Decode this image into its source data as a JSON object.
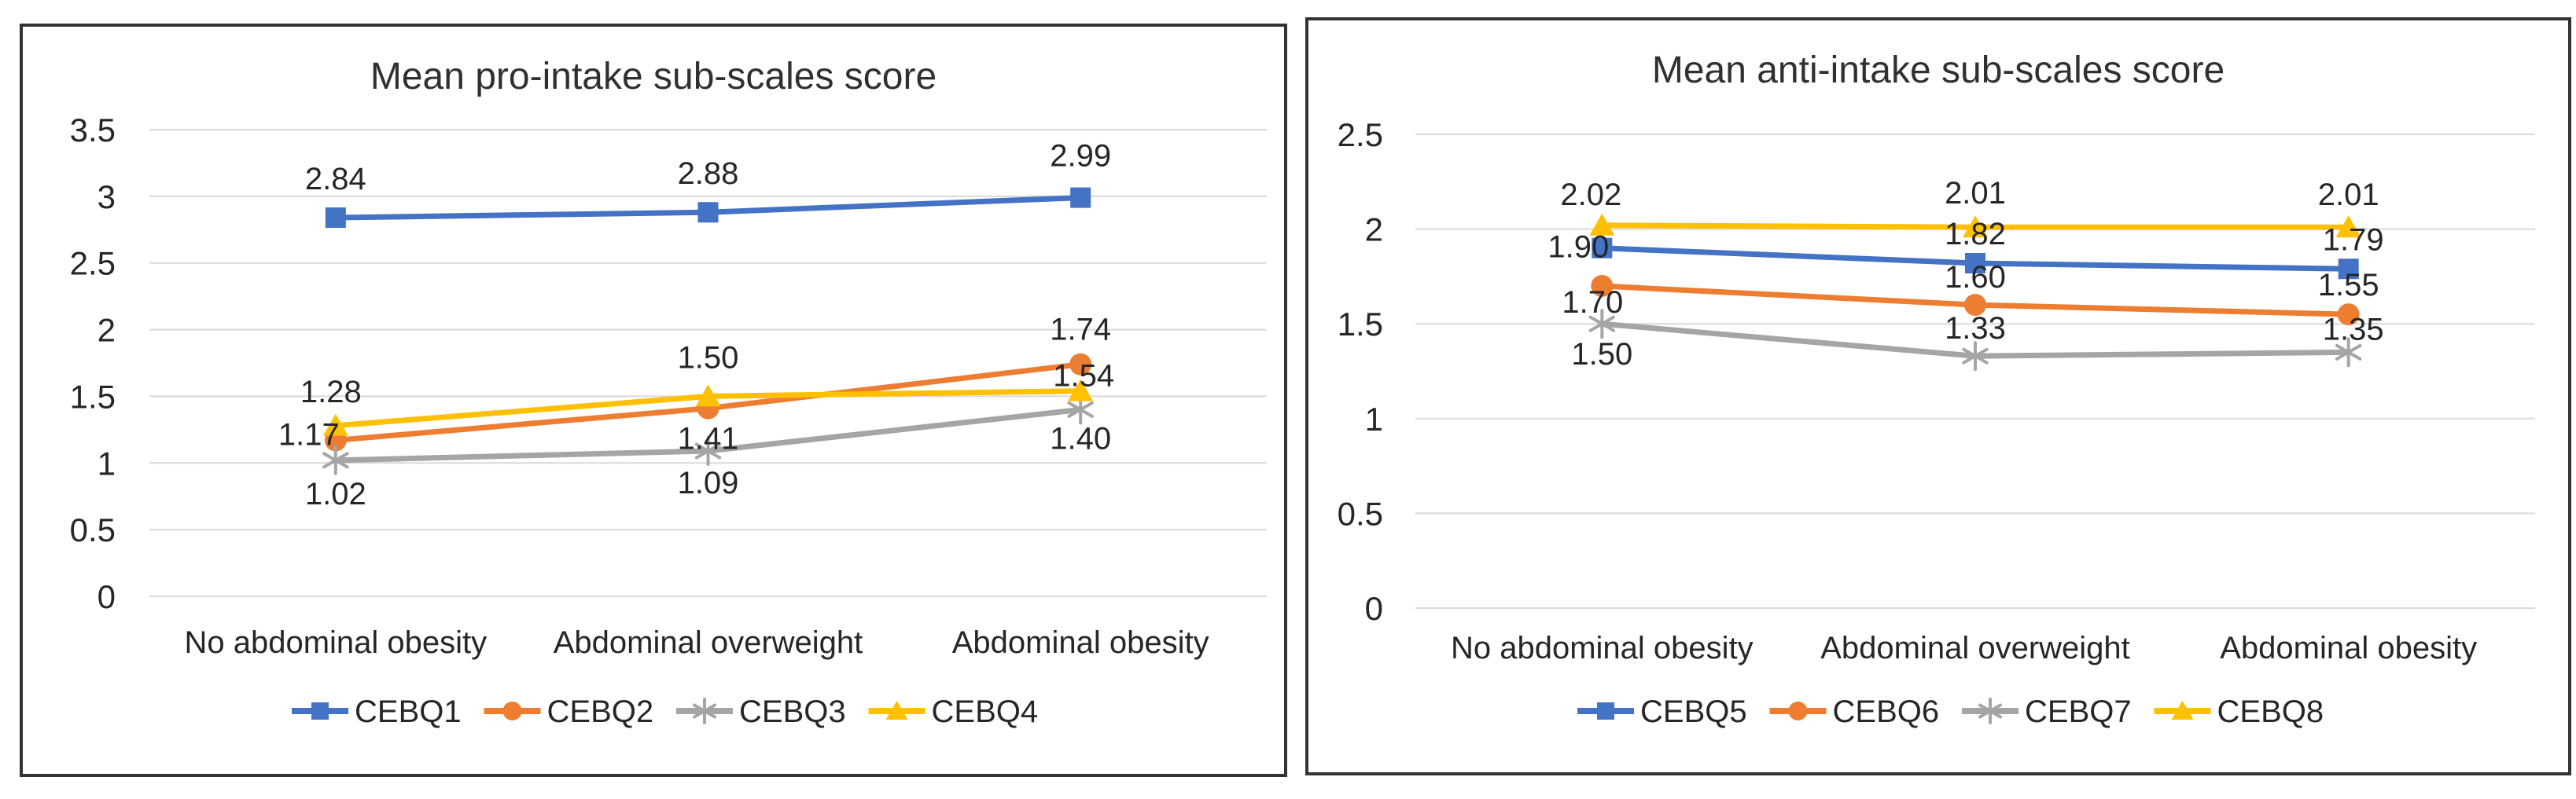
{
  "chart_data": [
    {
      "type": "line",
      "title": "Mean pro-intake sub-scales score",
      "categories": [
        "No abdominal obesity",
        "Abdominal overweight",
        "Abdominal obesity"
      ],
      "xlabel": "",
      "ylabel": "",
      "ylim": [
        0,
        3.5
      ],
      "ytick_step": 0.5,
      "y_tick_labels": [
        "0",
        "0.5",
        "1",
        "1.5",
        "2",
        "2.5",
        "3",
        "3.5"
      ],
      "grid": true,
      "legend_position": "bottom",
      "series": [
        {
          "name": "CEBQ1",
          "color": "#4472C4",
          "marker": "square",
          "values": [
            2.84,
            2.88,
            2.99
          ],
          "labels": [
            "2.84",
            "2.88",
            "2.99"
          ]
        },
        {
          "name": "CEBQ2",
          "color": "#ED7D31",
          "marker": "circle",
          "values": [
            1.17,
            1.41,
            1.74
          ],
          "labels": [
            "1.17",
            "1.41",
            "1.74"
          ]
        },
        {
          "name": "CEBQ3",
          "color": "#A5A5A5",
          "marker": "asterisk",
          "values": [
            1.02,
            1.09,
            1.4
          ],
          "labels": [
            "1.02",
            "1.09",
            "1.40"
          ]
        },
        {
          "name": "CEBQ4",
          "color": "#FFC000",
          "marker": "triangle",
          "values": [
            1.28,
            1.5,
            1.54
          ],
          "labels": [
            "1.28",
            "1.50",
            "1.54"
          ]
        }
      ]
    },
    {
      "type": "line",
      "title": "Mean anti-intake sub-scales score",
      "categories": [
        "No abdominal obesity",
        "Abdominal overweight",
        "Abdominal obesity"
      ],
      "xlabel": "",
      "ylabel": "",
      "ylim": [
        0,
        2.5
      ],
      "ytick_step": 0.5,
      "y_tick_labels": [
        "0",
        "0.5",
        "1",
        "1.5",
        "2",
        "2.5"
      ],
      "grid": true,
      "legend_position": "bottom",
      "series": [
        {
          "name": "CEBQ5",
          "color": "#4472C4",
          "marker": "square",
          "values": [
            1.9,
            1.82,
            1.79
          ],
          "labels": [
            "1.90",
            "1.82",
            "1.79"
          ]
        },
        {
          "name": "CEBQ6",
          "color": "#ED7D31",
          "marker": "circle",
          "values": [
            1.7,
            1.6,
            1.55
          ],
          "labels": [
            "1.70",
            "1.60",
            "1.55"
          ]
        },
        {
          "name": "CEBQ7",
          "color": "#A5A5A5",
          "marker": "asterisk",
          "values": [
            1.5,
            1.33,
            1.35
          ],
          "labels": [
            "1.50",
            "1.33",
            "1.35"
          ]
        },
        {
          "name": "CEBQ8",
          "color": "#FFC000",
          "marker": "triangle",
          "values": [
            2.02,
            2.01,
            2.01
          ],
          "labels": [
            "2.02",
            "2.01",
            "2.01"
          ]
        }
      ]
    }
  ]
}
